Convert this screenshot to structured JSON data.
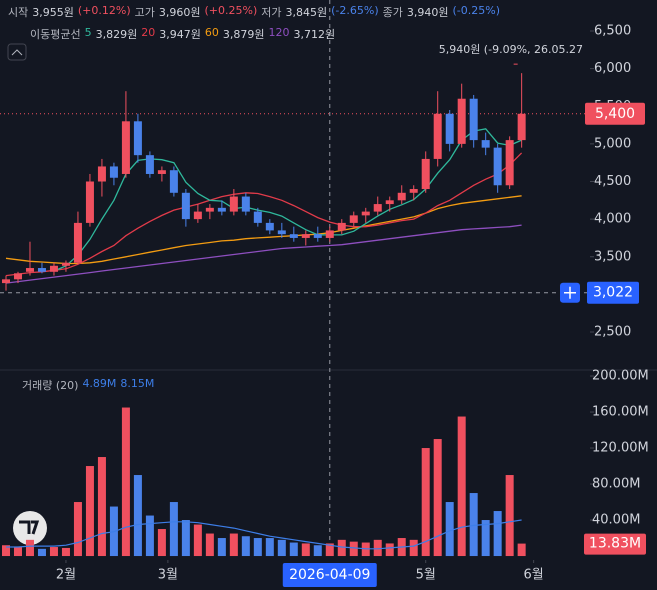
{
  "header": {
    "ohlc": [
      {
        "label": "시작",
        "value": "3,955원",
        "change": "(+0.12%)",
        "color": "#f0505f"
      },
      {
        "label": "고가",
        "value": "3,960원",
        "change": "(+0.25%)",
        "color": "#f0505f"
      },
      {
        "label": "저가",
        "value": "3,845원",
        "change": "(-2.65%)",
        "color": "#4a82ea"
      },
      {
        "label": "종가",
        "value": "3,940원",
        "change": "(-0.25%)",
        "color": "#4a82ea"
      }
    ],
    "ma_legend": {
      "title": "이동평균선",
      "items": [
        {
          "period": "5",
          "value": "3,829원",
          "color": "#2fb89c"
        },
        {
          "period": "20",
          "value": "3,947원",
          "color": "#e23b4a"
        },
        {
          "period": "60",
          "value": "3,879원",
          "color": "#f39c12"
        },
        {
          "period": "120",
          "value": "3,712원",
          "color": "#8e4fc0"
        }
      ]
    },
    "volume_legend": {
      "title": "거래량 (20)",
      "values": [
        "4.89M",
        "8.15M"
      ],
      "color": "#3d7ee8"
    }
  },
  "chart_data": [
    {
      "type": "candlestick",
      "up_color": "#f0505f",
      "down_color": "#4a82ea",
      "xlim": [
        -0.5,
        48.7
      ],
      "ylim": [
        1995,
        6912
      ],
      "yticks": [
        {
          "value": 2500,
          "label": "2,500"
        },
        {
          "value": 3000,
          "label": "3,000"
        },
        {
          "value": 3500,
          "label": "3,500"
        },
        {
          "value": 4000,
          "label": "4,000"
        },
        {
          "value": 4500,
          "label": "4,500"
        },
        {
          "value": 5000,
          "label": "5,000"
        },
        {
          "value": 5500,
          "label": "5,500"
        },
        {
          "value": 6000,
          "label": "6,000"
        },
        {
          "value": 6500,
          "label": "6,500"
        }
      ],
      "open": [
        3150,
        3200,
        3300,
        3350,
        3300,
        3380,
        3420,
        3950,
        4500,
        4700,
        4600,
        5300,
        4850,
        4600,
        4650,
        4350,
        4000,
        4100,
        4150,
        4100,
        4300,
        4100,
        3950,
        3850,
        3800,
        3750,
        3800,
        3750,
        3850,
        3950,
        4050,
        4100,
        4200,
        4250,
        4350,
        4400,
        4800,
        5400,
        5000,
        5600,
        5050,
        4950,
        4450,
        5050
      ],
      "high": [
        3250,
        3300,
        3700,
        3420,
        3420,
        3450,
        4100,
        4600,
        4800,
        4750,
        5700,
        5400,
        4900,
        4700,
        4700,
        4400,
        4200,
        4200,
        4250,
        4400,
        4350,
        4150,
        4000,
        3950,
        3900,
        3850,
        3900,
        3900,
        4000,
        4100,
        4150,
        4300,
        4300,
        4450,
        4450,
        4900,
        5700,
        5450,
        5800,
        5650,
        5150,
        5000,
        5100,
        5940
      ],
      "low": [
        3050,
        3150,
        3250,
        3280,
        3250,
        3300,
        3400,
        3900,
        4300,
        4450,
        4550,
        4750,
        4550,
        4500,
        4300,
        3900,
        3950,
        4000,
        4050,
        4050,
        4050,
        3900,
        3800,
        3750,
        3700,
        3650,
        3700,
        3700,
        3800,
        3900,
        3950,
        4050,
        4100,
        4200,
        4250,
        4350,
        4700,
        4900,
        4950,
        4950,
        4850,
        4350,
        4400,
        4950
      ],
      "close": [
        3200,
        3280,
        3350,
        3300,
        3380,
        3420,
        3950,
        4500,
        4700,
        4550,
        5300,
        4850,
        4600,
        4650,
        4350,
        4000,
        4100,
        4150,
        4100,
        4300,
        4100,
        3950,
        3850,
        3800,
        3750,
        3800,
        3750,
        3850,
        3950,
        4050,
        4100,
        4200,
        4250,
        4350,
        4400,
        4800,
        5400,
        5000,
        5600,
        5050,
        4950,
        4450,
        5050,
        5400
      ],
      "ma": [
        {
          "name": "5",
          "color": "#2fb89c",
          "values": [
            null,
            null,
            null,
            null,
            3310,
            3380,
            3520,
            3730,
            4000,
            4250,
            4600,
            4780,
            4800,
            4790,
            4750,
            4490,
            4340,
            4250,
            4240,
            4140,
            4160,
            4120,
            4090,
            4040,
            3950,
            3860,
            3790,
            3790,
            3790,
            3840,
            3940,
            4040,
            4130,
            4190,
            4260,
            4400,
            4610,
            4790,
            5050,
            5170,
            5200,
            5010,
            4980,
            5050
          ]
        },
        {
          "name": "20",
          "color": "#e23b4a",
          "values": [
            3250,
            3270,
            3290,
            3300,
            3320,
            3340,
            3400,
            3480,
            3570,
            3650,
            3780,
            3880,
            3970,
            4050,
            4120,
            4160,
            4200,
            4250,
            4300,
            4330,
            4350,
            4340,
            4300,
            4250,
            4180,
            4100,
            4020,
            3960,
            3920,
            3900,
            3900,
            3920,
            3950,
            3980,
            4000,
            4080,
            4180,
            4250,
            4350,
            4450,
            4530,
            4600,
            4720,
            4880
          ]
        },
        {
          "name": "60",
          "color": "#f39c12",
          "values": [
            3480,
            3460,
            3440,
            3430,
            3420,
            3410,
            3410,
            3420,
            3440,
            3470,
            3500,
            3530,
            3560,
            3590,
            3620,
            3650,
            3670,
            3690,
            3710,
            3720,
            3740,
            3750,
            3760,
            3770,
            3780,
            3790,
            3800,
            3820,
            3850,
            3880,
            3910,
            3940,
            3970,
            4000,
            4030,
            4080,
            4140,
            4180,
            4210,
            4230,
            4250,
            4270,
            4290,
            4310
          ]
        },
        {
          "name": "120",
          "color": "#8e4fc0",
          "values": [
            3150,
            3170,
            3190,
            3210,
            3230,
            3250,
            3270,
            3290,
            3310,
            3330,
            3350,
            3370,
            3390,
            3410,
            3430,
            3450,
            3470,
            3490,
            3510,
            3530,
            3550,
            3570,
            3590,
            3610,
            3620,
            3630,
            3640,
            3650,
            3660,
            3680,
            3700,
            3720,
            3740,
            3760,
            3780,
            3800,
            3820,
            3840,
            3860,
            3870,
            3880,
            3890,
            3900,
            3920
          ]
        }
      ],
      "annotation": {
        "value": 5940,
        "text": "5,940원 (-9.09%, 26.05.27"
      },
      "last_price": {
        "value": 5400,
        "label": "5,400"
      },
      "crosshair": {
        "x": 27,
        "x_label": "2026-04-09",
        "y": {
          "value": 3022,
          "label": "3,022"
        }
      }
    },
    {
      "type": "bar",
      "xlim": [
        -0.5,
        48.7
      ],
      "ylim": [
        -4.4,
        206.7
      ],
      "xticks": [
        {
          "value": 5,
          "label": "2월"
        },
        {
          "value": 13.5,
          "label": "3월"
        },
        {
          "value": 35,
          "label": "5월"
        },
        {
          "value": 44,
          "label": "6월"
        }
      ],
      "yticks": [
        {
          "value": 40,
          "label": "40.00M"
        },
        {
          "value": 80,
          "label": "80.00M"
        },
        {
          "value": 120,
          "label": "120.00M"
        },
        {
          "value": 160,
          "label": "160.00M"
        },
        {
          "value": 200,
          "label": "200.00M"
        }
      ],
      "values": [
        12,
        10,
        18,
        8,
        10,
        9,
        60,
        100,
        110,
        55,
        165,
        90,
        45,
        30,
        60,
        40,
        35,
        25,
        20,
        25,
        22,
        20,
        20,
        18,
        15,
        14,
        12,
        14,
        18,
        16,
        15,
        18,
        14,
        20,
        18,
        120,
        130,
        60,
        155,
        70,
        40,
        50,
        90,
        13.83
      ],
      "ma": {
        "color": "#3d7ee8",
        "values": [
          10,
          10,
          11,
          11,
          11,
          12,
          15,
          20,
          25,
          27,
          32,
          35,
          36,
          37,
          38,
          38,
          37,
          35,
          33,
          31,
          28,
          25,
          22,
          20,
          18,
          16,
          14,
          12,
          10,
          9,
          8,
          8,
          9,
          10,
          11,
          16,
          22,
          28,
          32,
          34,
          35,
          36,
          38,
          40
        ]
      },
      "last_value": {
        "value": 13.83,
        "label": "13.83M"
      }
    }
  ]
}
